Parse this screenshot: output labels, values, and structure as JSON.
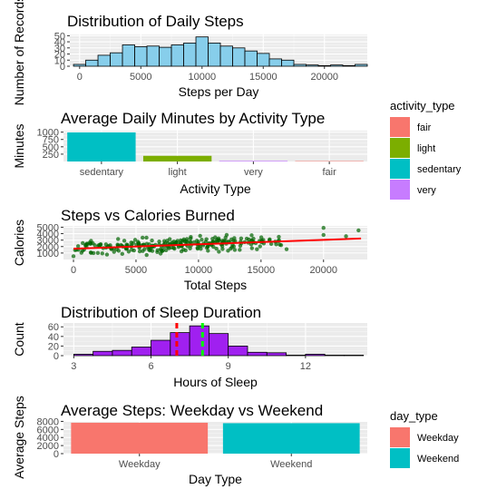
{
  "chart_data": [
    {
      "id": "steps_hist",
      "type": "bar",
      "title": "Distribution of Daily Steps",
      "xlabel": "Steps per Day",
      "ylabel": "Number of Records",
      "fill": "#87ceeb",
      "bin_width": 1000,
      "bins": [
        {
          "x0": -500,
          "count": 3
        },
        {
          "x0": 500,
          "count": 10
        },
        {
          "x0": 1500,
          "count": 18
        },
        {
          "x0": 2500,
          "count": 22
        },
        {
          "x0": 3500,
          "count": 35
        },
        {
          "x0": 4500,
          "count": 32
        },
        {
          "x0": 5500,
          "count": 33
        },
        {
          "x0": 6500,
          "count": 31
        },
        {
          "x0": 7500,
          "count": 35
        },
        {
          "x0": 8500,
          "count": 38
        },
        {
          "x0": 9500,
          "count": 48
        },
        {
          "x0": 10500,
          "count": 38
        },
        {
          "x0": 11500,
          "count": 33
        },
        {
          "x0": 12500,
          "count": 30
        },
        {
          "x0": 13500,
          "count": 25
        },
        {
          "x0": 14500,
          "count": 21
        },
        {
          "x0": 15500,
          "count": 12
        },
        {
          "x0": 16500,
          "count": 10
        },
        {
          "x0": 17500,
          "count": 3
        },
        {
          "x0": 18500,
          "count": 2
        },
        {
          "x0": 19500,
          "count": 1
        },
        {
          "x0": 20500,
          "count": 2
        },
        {
          "x0": 21500,
          "count": 1
        },
        {
          "x0": 22500,
          "count": 3
        }
      ],
      "xlim": [
        -800,
        23500
      ],
      "ylim": [
        0,
        52
      ],
      "xticks": [
        0,
        5000,
        10000,
        15000,
        20000
      ],
      "yticks": [
        0,
        10,
        20,
        30,
        40,
        50
      ]
    },
    {
      "id": "activity_bar",
      "type": "bar",
      "title": "Average Daily Minutes by Activity Type",
      "xlabel": "Activity Type",
      "ylabel": "Minutes",
      "categories": [
        "sedentary",
        "light",
        "very",
        "fair"
      ],
      "values": [
        991,
        193,
        21,
        14
      ],
      "colors": [
        "#00bfc4",
        "#7cae00",
        "#c77cff",
        "#f8766d"
      ],
      "ylim": [
        0,
        1050
      ],
      "yticks": [
        250,
        500,
        750,
        1000
      ]
    },
    {
      "id": "steps_scatter",
      "type": "scatter",
      "title": "Steps vs Calories Burned",
      "xlabel": "Total Steps",
      "ylabel": "Calories",
      "point_color": "#006400",
      "trend_color": "#ff0000",
      "trend": [
        {
          "x": 0,
          "y": 1670
        },
        {
          "x": 23000,
          "y": 3250
        }
      ],
      "xlim": [
        -800,
        23500
      ],
      "ylim": [
        0,
        5200
      ],
      "xticks": [
        0,
        5000,
        10000,
        15000,
        20000
      ],
      "yticks": [
        1000,
        2000,
        3000,
        4000,
        5000
      ]
    },
    {
      "id": "sleep_hist",
      "type": "bar",
      "title": "Distribution of Sleep Duration",
      "xlabel": "Hours of Sleep",
      "ylabel": "Count",
      "fill": "#a020f0",
      "bin_width": 0.75,
      "bins": [
        {
          "x0": 3.0,
          "count": 3
        },
        {
          "x0": 3.75,
          "count": 9
        },
        {
          "x0": 4.5,
          "count": 11
        },
        {
          "x0": 5.25,
          "count": 18
        },
        {
          "x0": 6.0,
          "count": 32
        },
        {
          "x0": 6.75,
          "count": 48
        },
        {
          "x0": 7.5,
          "count": 62
        },
        {
          "x0": 8.25,
          "count": 46
        },
        {
          "x0": 9.0,
          "count": 20
        },
        {
          "x0": 9.75,
          "count": 7
        },
        {
          "x0": 10.5,
          "count": 6
        },
        {
          "x0": 11.25,
          "count": 1
        },
        {
          "x0": 12.0,
          "count": 3
        },
        {
          "x0": 12.75,
          "count": 1
        },
        {
          "x0": 13.5,
          "count": 1
        }
      ],
      "vlines": [
        {
          "x": 7.0,
          "color": "#ff0000",
          "style": "dashed"
        },
        {
          "x": 8.0,
          "color": "#00ff00",
          "style": "dashed"
        }
      ],
      "xlim": [
        2.6,
        14.4
      ],
      "ylim": [
        0,
        68
      ],
      "xticks": [
        3,
        6,
        9,
        12
      ],
      "yticks": [
        0,
        20,
        40,
        60
      ]
    },
    {
      "id": "daytype_bar",
      "type": "bar",
      "title": "Average Steps: Weekday vs Weekend",
      "xlabel": "Day Type",
      "ylabel": "Average Steps",
      "categories": [
        "Weekday",
        "Weekend"
      ],
      "values": [
        7668,
        7550
      ],
      "colors": [
        "#f8766d",
        "#00bfc4"
      ],
      "ylim": [
        0,
        8100
      ],
      "yticks": [
        0,
        2000,
        4000,
        6000,
        8000
      ]
    }
  ],
  "legends": [
    {
      "id": "legend_activity",
      "title": "activity_type",
      "items": [
        {
          "label": "fair",
          "color": "#f8766d"
        },
        {
          "label": "light",
          "color": "#7cae00"
        },
        {
          "label": "sedentary",
          "color": "#00bfc4"
        },
        {
          "label": "very",
          "color": "#c77cff"
        }
      ]
    },
    {
      "id": "legend_daytype",
      "title": "day_type",
      "items": [
        {
          "label": "Weekday",
          "color": "#f8766d"
        },
        {
          "label": "Weekend",
          "color": "#00bfc4"
        }
      ]
    }
  ]
}
